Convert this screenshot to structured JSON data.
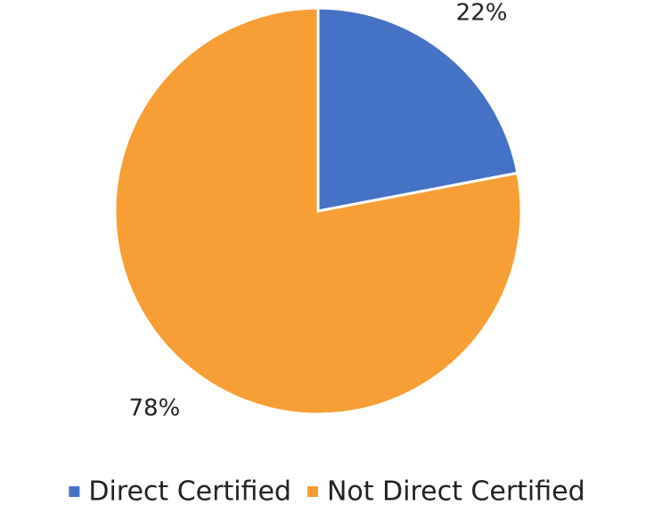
{
  "chart_data": {
    "type": "pie",
    "categories": [
      "Direct Certified",
      "Not Direct Certified"
    ],
    "values": [
      22,
      78
    ],
    "value_labels": [
      "22%",
      "78%"
    ],
    "colors": [
      "#4472c4",
      "#f79e35"
    ],
    "legend": "bottom"
  }
}
